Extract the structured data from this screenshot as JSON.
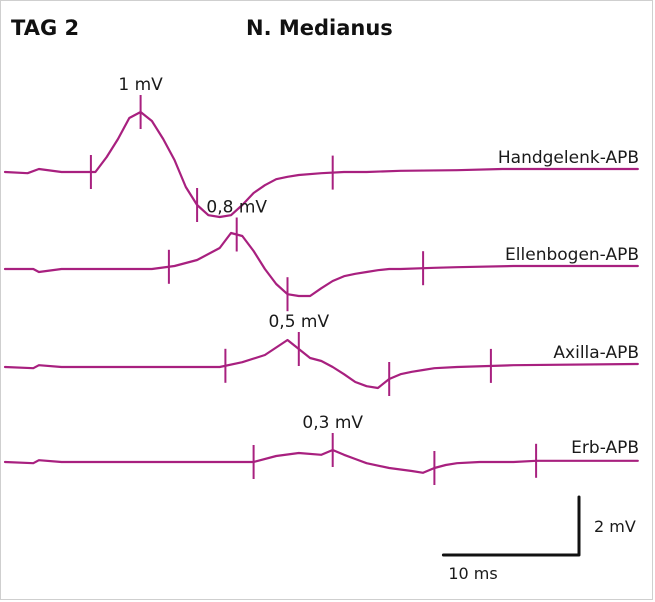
{
  "header": {
    "day_label": "TAG 2",
    "title": "N. Medianus"
  },
  "colors": {
    "trace": "#a8207f",
    "scale": "#111111"
  },
  "chart_data": {
    "type": "line",
    "title": "N. Medianus",
    "x_unit": "ms",
    "y_unit": "mV",
    "x_range_ms": [
      0,
      56
    ],
    "series": [
      {
        "name": "Handgelenk-APB",
        "amplitude_label": "1 mV",
        "x": [
          0,
          2,
          3,
          5,
          8,
          9,
          10,
          11,
          12,
          13,
          14,
          15,
          16,
          17,
          18,
          19,
          20,
          21,
          22,
          23,
          24,
          25,
          26,
          28,
          30,
          32,
          35,
          40,
          44,
          56
        ],
        "y": [
          0,
          -0.02,
          0.05,
          0.0,
          0.0,
          0.25,
          0.55,
          0.9,
          1.0,
          0.85,
          0.55,
          0.2,
          -0.25,
          -0.55,
          -0.72,
          -0.75,
          -0.72,
          -0.55,
          -0.35,
          -0.22,
          -0.12,
          -0.08,
          -0.05,
          -0.02,
          0.0,
          0.0,
          0.02,
          0.03,
          0.05,
          0.05
        ],
        "markers_ms": [
          7.6,
          12.0,
          17.0,
          29.0
        ]
      },
      {
        "name": "Ellenbogen-APB",
        "amplitude_label": "0,8 mV",
        "x": [
          0,
          2.5,
          3,
          5,
          10,
          13,
          15,
          17,
          19,
          20,
          21,
          22,
          23,
          24,
          25,
          26,
          27,
          28,
          29,
          30,
          31,
          32,
          33,
          34,
          35,
          38,
          40,
          45,
          56
        ],
        "y": [
          0,
          0.0,
          -0.05,
          0.0,
          0.0,
          0.0,
          0.05,
          0.15,
          0.35,
          0.6,
          0.55,
          0.3,
          0.0,
          -0.25,
          -0.42,
          -0.45,
          -0.45,
          -0.32,
          -0.2,
          -0.12,
          -0.08,
          -0.05,
          -0.02,
          0.0,
          0.0,
          0.02,
          0.03,
          0.05,
          0.05
        ],
        "markers_ms": [
          14.5,
          20.5,
          25.0,
          37.0
        ]
      },
      {
        "name": "Axilla-APB",
        "amplitude_label": "0,5 mV",
        "x": [
          0,
          2.5,
          3,
          5,
          10,
          19,
          21,
          23,
          25,
          26,
          27,
          28,
          29,
          30,
          31,
          32,
          33,
          34,
          35,
          36,
          37,
          38,
          40,
          45,
          56
        ],
        "y": [
          0,
          -0.02,
          0.03,
          0.0,
          0.0,
          0.0,
          0.08,
          0.2,
          0.45,
          0.3,
          0.15,
          0.1,
          0.0,
          -0.12,
          -0.25,
          -0.32,
          -0.35,
          -0.2,
          -0.12,
          -0.08,
          -0.05,
          -0.02,
          0.0,
          0.03,
          0.05
        ],
        "markers_ms": [
          19.5,
          26.0,
          34.0,
          43.0
        ]
      },
      {
        "name": "Erb-APB",
        "amplitude_label": "0,3 mV",
        "x": [
          0,
          2.5,
          3,
          5,
          10,
          20,
          22,
          24,
          26,
          28,
          29,
          30,
          31,
          32,
          34,
          36,
          37,
          38,
          39,
          40,
          42,
          45,
          47,
          56
        ],
        "y": [
          0,
          -0.02,
          0.03,
          0.0,
          0.0,
          0.0,
          0.0,
          0.1,
          0.15,
          0.12,
          0.2,
          0.12,
          0.05,
          -0.02,
          -0.1,
          -0.15,
          -0.18,
          -0.1,
          -0.05,
          -0.02,
          0.0,
          0.0,
          0.02,
          0.02
        ],
        "markers_ms": [
          22.0,
          29.0,
          38.0,
          47.0
        ]
      }
    ],
    "scale_bar": {
      "time_label": "10 ms",
      "voltage_label": "2 mV",
      "time_ms": 10,
      "voltage_mv": 2
    }
  }
}
